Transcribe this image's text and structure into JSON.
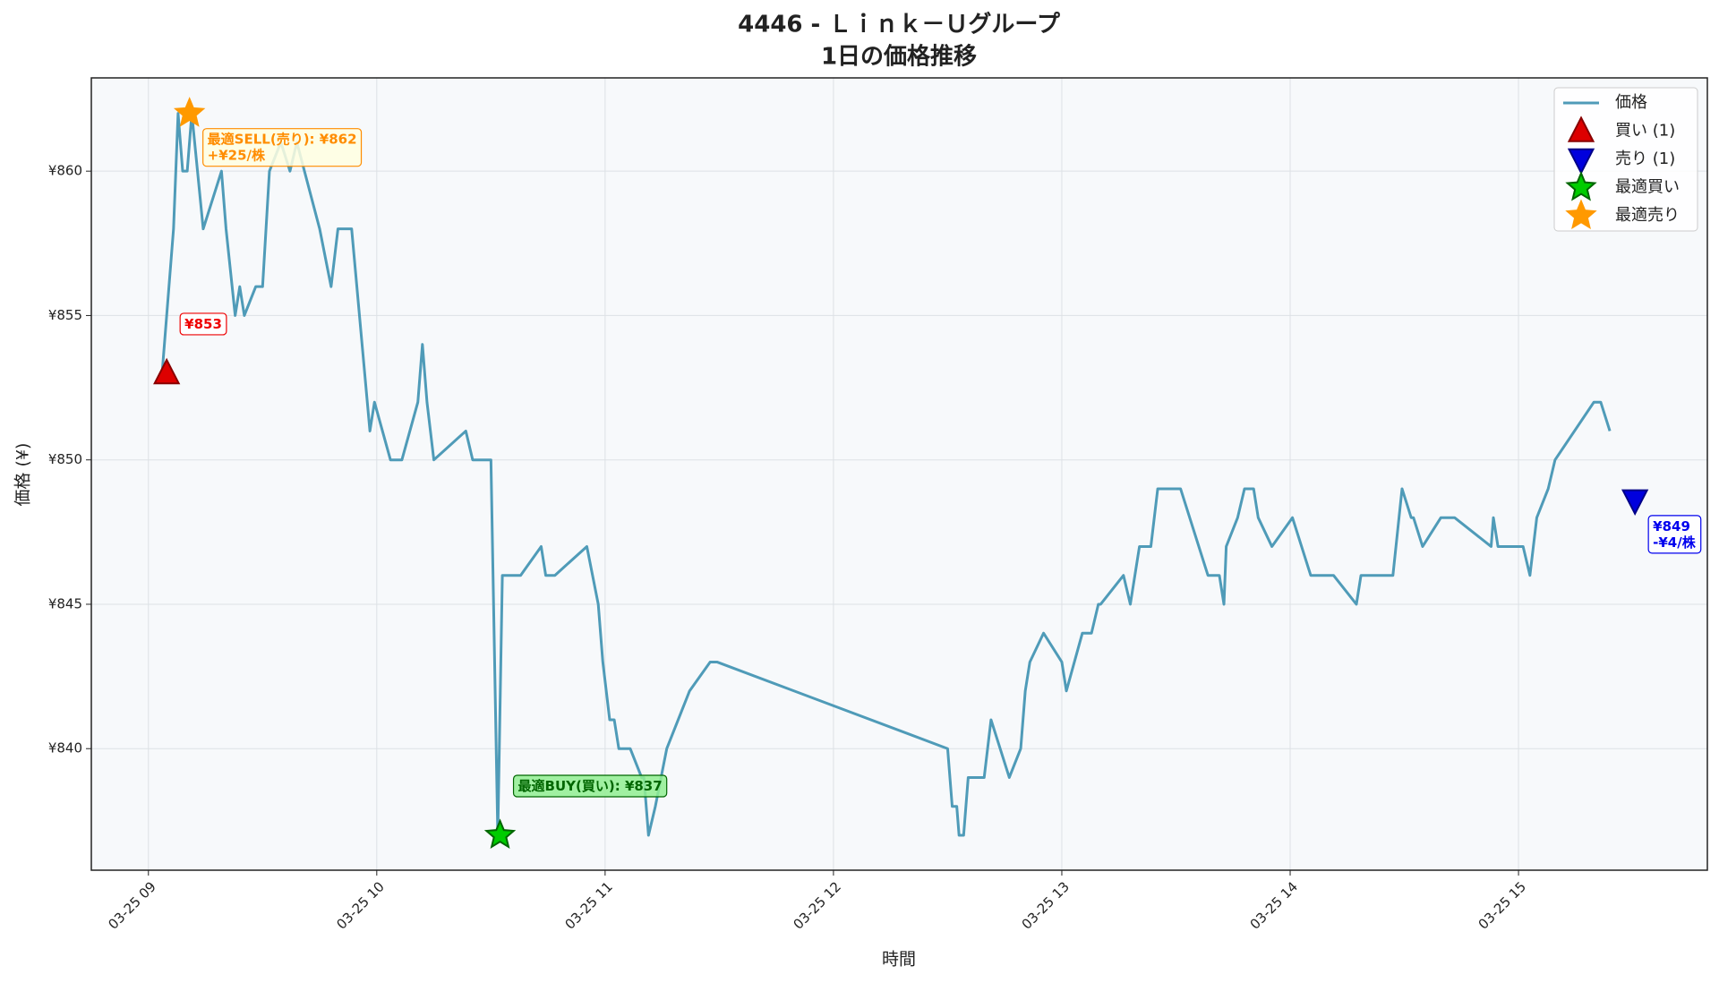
{
  "chart_data": {
    "type": "line",
    "title": "4446 - Ｌｉｎｋ－Ｕグループ",
    "subtitle": "1日の価格推移",
    "x_label": "時間",
    "y_label": "価格 (¥)",
    "xlim": [
      8.75,
      15.827
    ],
    "ylim": [
      835.79,
      863.23
    ],
    "xticks": [
      {
        "value": 9,
        "label": "03-25 09"
      },
      {
        "value": 10,
        "label": "03-25 10"
      },
      {
        "value": 11,
        "label": "03-25 11"
      },
      {
        "value": 12,
        "label": "03-25 12"
      },
      {
        "value": 13,
        "label": "03-25 13"
      },
      {
        "value": 14,
        "label": "03-25 14"
      },
      {
        "value": 15,
        "label": "03-25 15"
      }
    ],
    "yticks": [
      {
        "value": 840,
        "label": "¥840"
      },
      {
        "value": 845,
        "label": "¥845"
      },
      {
        "value": 850,
        "label": "¥850"
      },
      {
        "value": 855,
        "label": "¥855"
      },
      {
        "value": 860,
        "label": "¥860"
      }
    ],
    "grid": true,
    "legend": "upper right",
    "series": [
      {
        "name": "価格",
        "type": "line",
        "color": "#4f9bb8",
        "x": [
          9.06,
          9.1,
          9.11,
          9.13,
          9.15,
          9.17,
          9.19,
          9.24,
          9.32,
          9.34,
          9.38,
          9.4,
          9.42,
          9.47,
          9.5,
          9.53,
          9.58,
          9.62,
          9.65,
          9.75,
          9.8,
          9.83,
          9.89,
          9.97,
          9.99,
          10.06,
          10.11,
          10.18,
          10.2,
          10.22,
          10.25,
          10.39,
          10.42,
          10.5,
          10.53,
          10.55,
          10.63,
          10.72,
          10.74,
          10.78,
          10.92,
          10.97,
          10.99,
          11.02,
          11.04,
          11.06,
          11.11,
          11.16,
          11.17,
          11.19,
          11.22,
          11.27,
          11.37,
          11.46,
          11.49,
          12.5,
          12.52,
          12.54,
          12.55,
          12.57,
          12.59,
          12.66,
          12.69,
          12.73,
          12.77,
          12.82,
          12.84,
          12.86,
          12.92,
          13.0,
          13.02,
          13.09,
          13.13,
          13.16,
          13.17,
          13.27,
          13.3,
          13.34,
          13.39,
          13.42,
          13.52,
          13.64,
          13.69,
          13.71,
          13.72,
          13.77,
          13.8,
          13.84,
          13.86,
          13.92,
          14.01,
          14.09,
          14.19,
          14.29,
          14.31,
          14.45,
          14.49,
          14.53,
          14.54,
          14.58,
          14.66,
          14.72,
          14.88,
          14.89,
          14.91,
          15.02,
          15.05,
          15.08,
          15.13,
          15.16,
          15.33,
          15.36,
          15.4
        ],
        "values": [
          853,
          857,
          858,
          862,
          860,
          860,
          862,
          858,
          860,
          858,
          855,
          856,
          855,
          856,
          856,
          860,
          861,
          860,
          861,
          858,
          856,
          858,
          858,
          851,
          852,
          850,
          850,
          852,
          854,
          852,
          850,
          851,
          850,
          850,
          837,
          846,
          846,
          847,
          846,
          846,
          847,
          845,
          843,
          841,
          841,
          840,
          840,
          839,
          839,
          837,
          838,
          840,
          842,
          843,
          843,
          840,
          838,
          838,
          837,
          837,
          839,
          839,
          841,
          840,
          839,
          840,
          842,
          843,
          844,
          843,
          842,
          844,
          844,
          845,
          845,
          846,
          845,
          847,
          847,
          849,
          849,
          846,
          846,
          845,
          847,
          848,
          849,
          849,
          848,
          847,
          848,
          846,
          846,
          845,
          846,
          846,
          849,
          848,
          848,
          847,
          848,
          848,
          847,
          848,
          847,
          847,
          846,
          848,
          849,
          850,
          852,
          852,
          851
        ]
      },
      {
        "name": "買い (1)",
        "type": "scatter",
        "marker": "triangle-up",
        "color": "#dd0000",
        "x": [
          9.08
        ],
        "values": [
          853
        ],
        "annotation": [
          "¥853"
        ],
        "annotation_color": "#ee0000"
      },
      {
        "name": "売り (1)",
        "type": "scatter",
        "marker": "triangle-down",
        "color": "#0000dd",
        "x": [
          15.51
        ],
        "values": [
          848.6
        ],
        "annotation": [
          "¥849",
          "-¥4/株"
        ],
        "annotation_color": "#0000ee"
      },
      {
        "name": "最適買い",
        "type": "scatter",
        "marker": "star",
        "color": "#00cc00",
        "x": [
          10.54
        ],
        "values": [
          837
        ],
        "annotation": [
          "最適BUY(買い): ¥837"
        ],
        "annotation_color": "#006600"
      },
      {
        "name": "最適売り",
        "type": "scatter",
        "marker": "star",
        "color": "#ff9900",
        "x": [
          9.18
        ],
        "values": [
          862
        ],
        "annotation": [
          "最適SELL(売り): ¥862",
          "+¥25/株"
        ],
        "annotation_color": "#ff8c00"
      }
    ]
  }
}
